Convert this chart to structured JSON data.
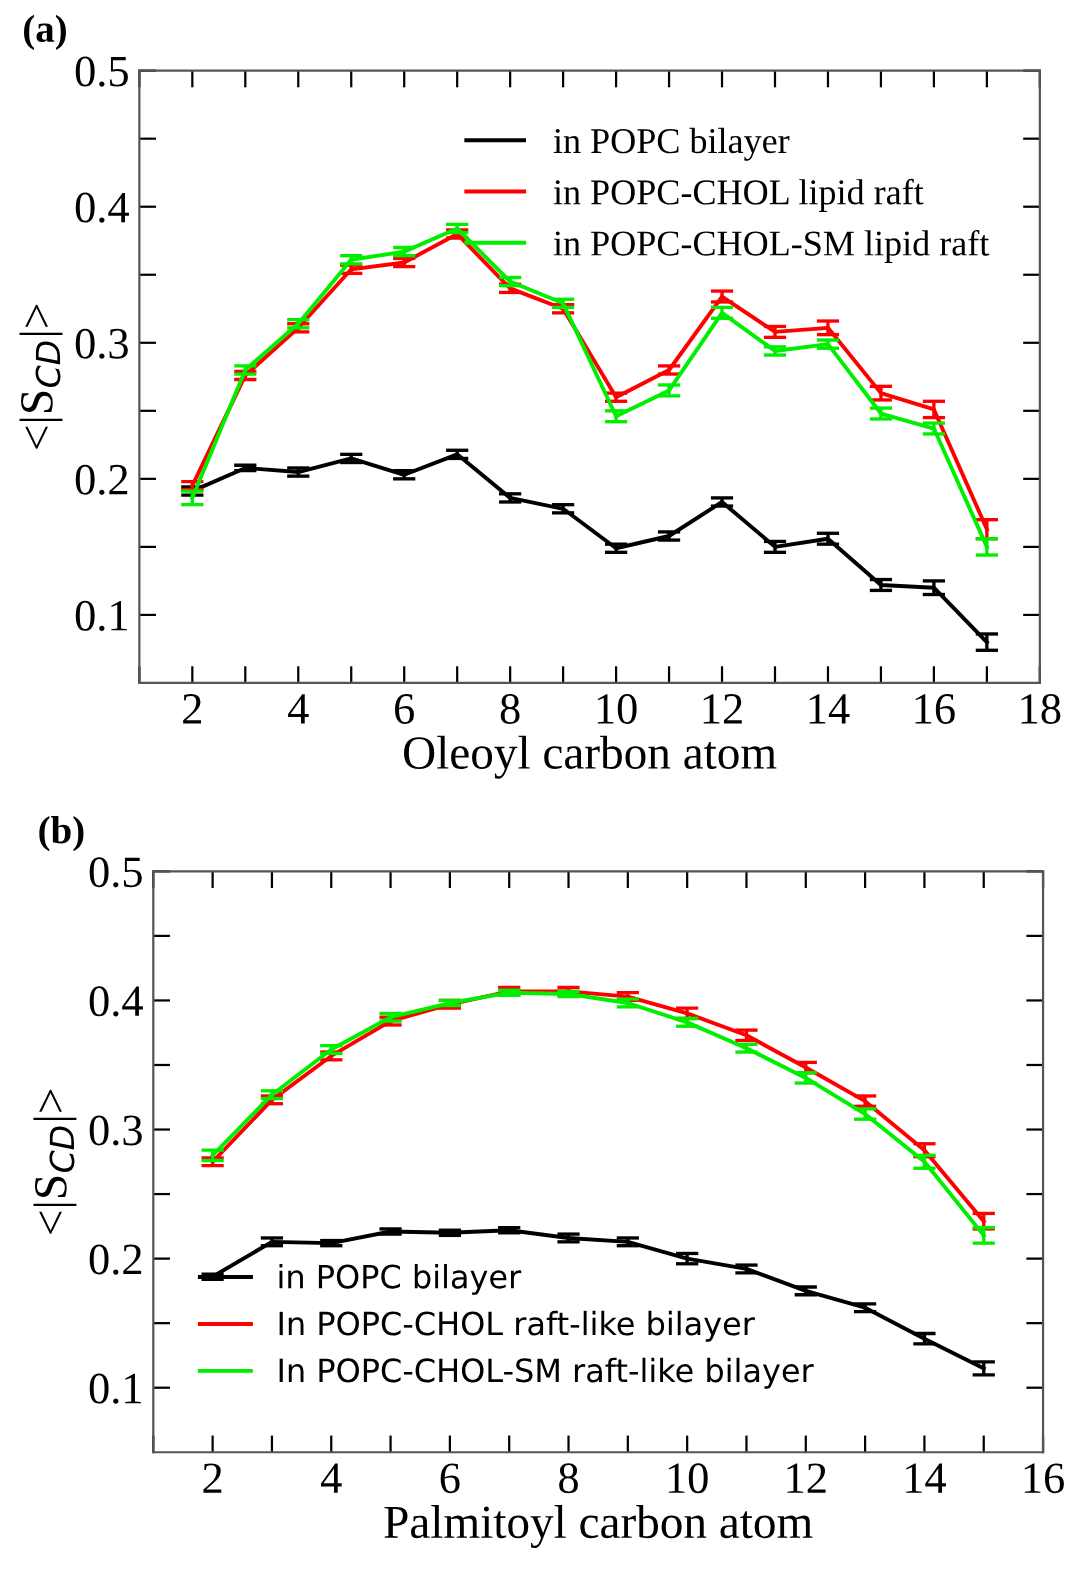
{
  "chart_data": [
    {
      "type": "line",
      "title": "(a)",
      "xlabel": "Oleoyl carbon atom",
      "ylabel": "<|S$_{CD}$|>",
      "x": [
        2,
        3,
        4,
        5,
        6,
        7,
        8,
        9,
        10,
        11,
        12,
        13,
        14,
        15,
        16,
        17
      ],
      "series": [
        {
          "name": "in POPC bilayer",
          "color": "#000000",
          "values": [
            0.191,
            0.208,
            0.205,
            0.215,
            0.203,
            0.218,
            0.186,
            0.178,
            0.149,
            0.158,
            0.183,
            0.15,
            0.156,
            0.122,
            0.12,
            0.08
          ],
          "errors": [
            0.003,
            0.002,
            0.003,
            0.003,
            0.003,
            0.003,
            0.003,
            0.003,
            0.003,
            0.003,
            0.003,
            0.004,
            0.004,
            0.004,
            0.005,
            0.006
          ]
        },
        {
          "name": "in POPC-CHOL lipid raft",
          "color": "#ff0000",
          "values": [
            0.195,
            0.276,
            0.311,
            0.354,
            0.359,
            0.38,
            0.34,
            0.325,
            0.26,
            0.28,
            0.334,
            0.308,
            0.311,
            0.263,
            0.251,
            0.163
          ],
          "errors": [
            0.003,
            0.003,
            0.003,
            0.003,
            0.003,
            0.003,
            0.003,
            0.003,
            0.003,
            0.003,
            0.004,
            0.004,
            0.005,
            0.005,
            0.006,
            0.007
          ]
        },
        {
          "name": "in POPC-CHOL-SM lipid raft",
          "color": "#00ee00",
          "values": [
            0.186,
            0.28,
            0.314,
            0.361,
            0.367,
            0.384,
            0.345,
            0.329,
            0.246,
            0.265,
            0.322,
            0.294,
            0.299,
            0.248,
            0.237,
            0.15
          ],
          "errors": [
            0.005,
            0.003,
            0.003,
            0.003,
            0.003,
            0.003,
            0.003,
            0.003,
            0.004,
            0.004,
            0.004,
            0.003,
            0.003,
            0.004,
            0.004,
            0.006
          ]
        }
      ],
      "xlim": [
        1,
        18
      ],
      "xticks": [
        {
          "value": 1,
          "label": null
        },
        2,
        {
          "value": 3,
          "label": null
        },
        4,
        {
          "value": 5,
          "label": null
        },
        6,
        {
          "value": 7,
          "label": null
        },
        8,
        {
          "value": 9,
          "label": null
        },
        10,
        {
          "value": 11,
          "label": null
        },
        12,
        {
          "value": 13,
          "label": null
        },
        14,
        {
          "value": 15,
          "label": null
        },
        16,
        {
          "value": 17,
          "label": null
        },
        18
      ],
      "ylim": [
        0.05,
        0.5
      ],
      "yticks": [
        0.1,
        {
          "value": 0.15,
          "label": null
        },
        0.2,
        {
          "value": 0.25,
          "label": null
        },
        0.3,
        {
          "value": 0.35,
          "label": null
        },
        0.4,
        {
          "value": 0.45,
          "label": null
        },
        0.5
      ],
      "legend": "top right",
      "marker": "none",
      "line_style": "solid",
      "grid": false
    },
    {
      "type": "line",
      "title": "(b)",
      "xlabel": "Palmitoyl carbon atom",
      "ylabel": "<|S$_{CD}$|>",
      "x": [
        2,
        3,
        4,
        5,
        6,
        7,
        8,
        9,
        10,
        11,
        12,
        13,
        14,
        15
      ],
      "series": [
        {
          "name": "in POPC bilayer",
          "color": "#000000",
          "values": [
            0.186,
            0.213,
            0.212,
            0.221,
            0.22,
            0.222,
            0.216,
            0.213,
            0.2,
            0.192,
            0.175,
            0.162,
            0.138,
            0.115
          ],
          "errors": [
            0.002,
            0.003,
            0.002,
            0.002,
            0.002,
            0.002,
            0.003,
            0.003,
            0.004,
            0.003,
            0.003,
            0.003,
            0.004,
            0.005
          ]
        },
        {
          "name": "In POPC-CHOL raft-like bilayer",
          "color": "#ff0000",
          "values": [
            0.275,
            0.323,
            0.357,
            0.384,
            0.397,
            0.407,
            0.407,
            0.403,
            0.39,
            0.373,
            0.348,
            0.322,
            0.284,
            0.229
          ],
          "errors": [
            0.003,
            0.003,
            0.003,
            0.003,
            0.003,
            0.003,
            0.003,
            0.003,
            0.004,
            0.004,
            0.004,
            0.004,
            0.005,
            0.006
          ]
        },
        {
          "name": "In POPC-CHOL-SM raft-like bilayer",
          "color": "#00ee00",
          "values": [
            0.28,
            0.327,
            0.362,
            0.387,
            0.398,
            0.406,
            0.405,
            0.398,
            0.383,
            0.363,
            0.34,
            0.312,
            0.275,
            0.218
          ],
          "errors": [
            0.004,
            0.003,
            0.003,
            0.003,
            0.002,
            0.002,
            0.002,
            0.003,
            0.003,
            0.003,
            0.004,
            0.004,
            0.005,
            0.006
          ]
        }
      ],
      "xlim": [
        1,
        16
      ],
      "xticks": [
        {
          "value": 1,
          "label": null
        },
        2,
        {
          "value": 3,
          "label": null
        },
        4,
        {
          "value": 5,
          "label": null
        },
        6,
        {
          "value": 7,
          "label": null
        },
        8,
        {
          "value": 9,
          "label": null
        },
        10,
        {
          "value": 11,
          "label": null
        },
        12,
        {
          "value": 13,
          "label": null
        },
        14,
        {
          "value": 15,
          "label": null
        },
        16
      ],
      "ylim": [
        0.05,
        0.5
      ],
      "yticks": [
        0.1,
        {
          "value": 0.15,
          "label": null
        },
        0.2,
        {
          "value": 0.25,
          "label": null
        },
        0.3,
        {
          "value": 0.35,
          "label": null
        },
        0.4,
        {
          "value": 0.45,
          "label": null
        },
        0.5
      ],
      "legend": "bottom left",
      "marker": "none",
      "line_style": "solid",
      "grid": false
    }
  ]
}
